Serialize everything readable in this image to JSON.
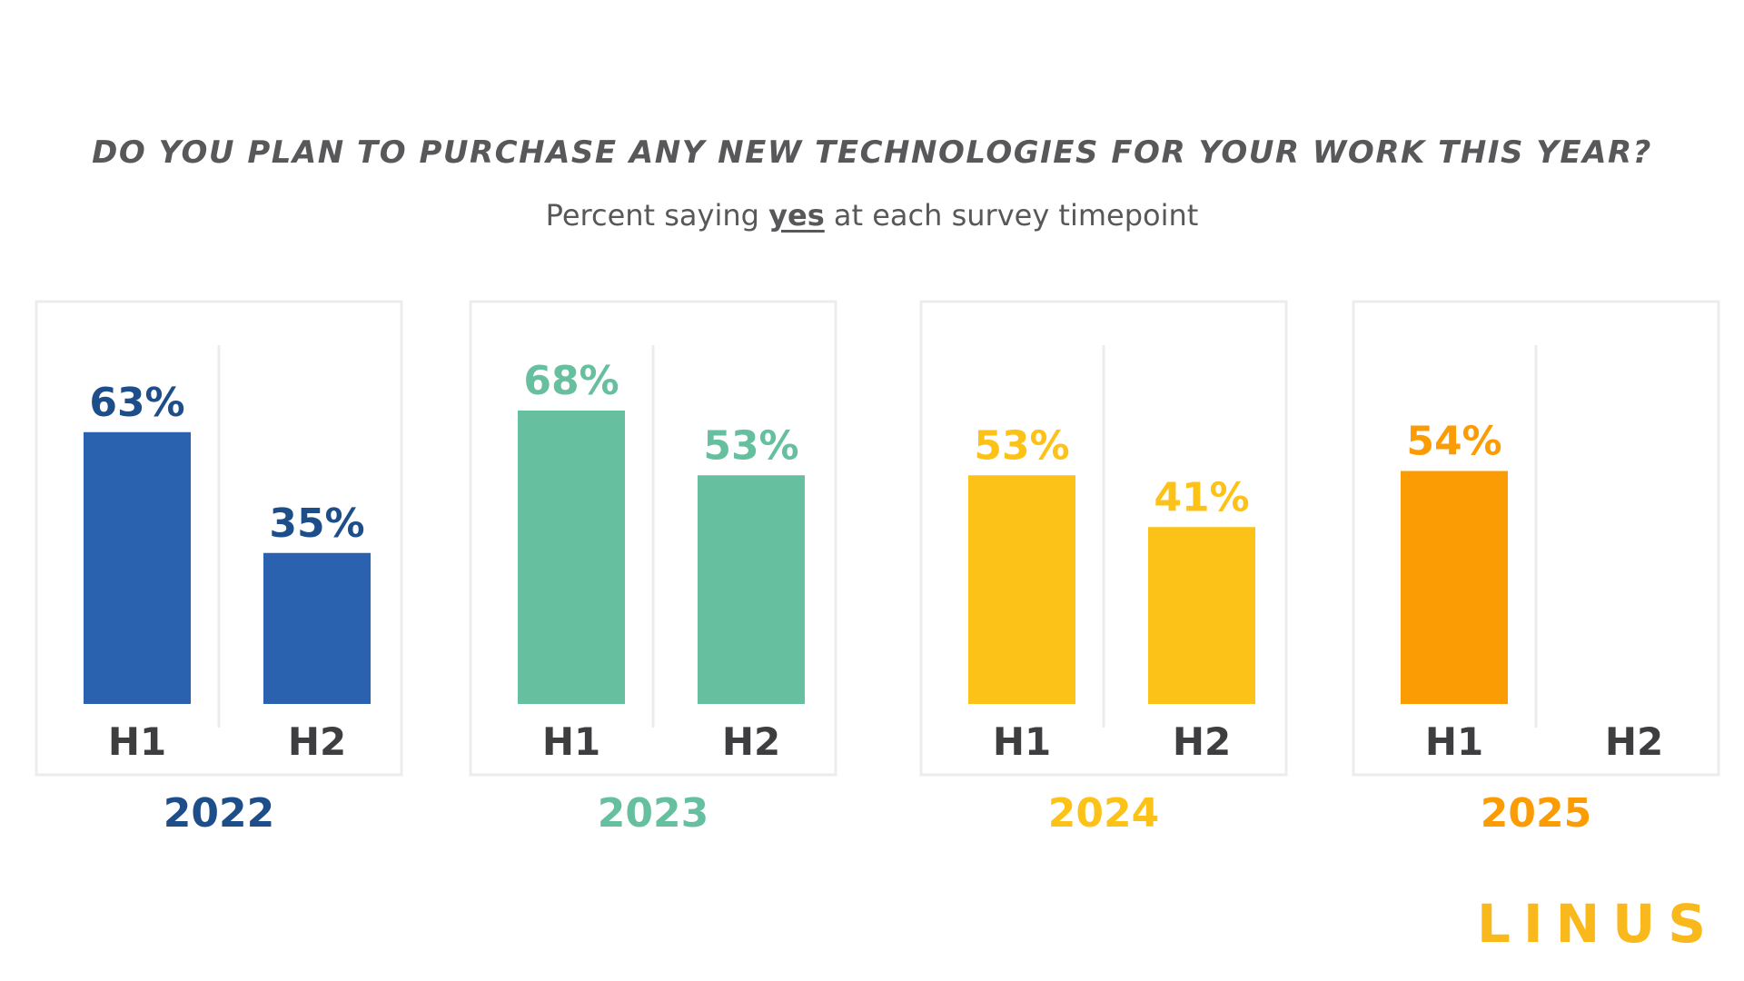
{
  "title": "DO YOU PLAN TO PURCHASE ANY NEW TECHNOLOGIES FOR YOUR WORK THIS YEAR?",
  "subtitle": {
    "before": "Percent saying ",
    "emphasis": "yes",
    "after": " at each survey timepoint"
  },
  "logo": "LINUS",
  "chart_data": {
    "type": "bar",
    "unit": "%",
    "ylim": [
      0,
      80
    ],
    "grid": false,
    "groups": [
      {
        "year": "2022",
        "color": "#2a62b0",
        "label_color": "#1d4e89",
        "bars": [
          {
            "period": "H1",
            "value": 63
          },
          {
            "period": "H2",
            "value": 35
          }
        ]
      },
      {
        "year": "2023",
        "color": "#66bf9f",
        "label_color": "#66bf9f",
        "bars": [
          {
            "period": "H1",
            "value": 68
          },
          {
            "period": "H2",
            "value": 53
          }
        ]
      },
      {
        "year": "2024",
        "color": "#fdc218",
        "label_color": "#fdc218",
        "bars": [
          {
            "period": "H1",
            "value": 53
          },
          {
            "period": "H2",
            "value": 41
          }
        ]
      },
      {
        "year": "2025",
        "color": "#fb9c04",
        "label_color": "#fb9c04",
        "bars": [
          {
            "period": "H1",
            "value": 54
          },
          {
            "period": "H2",
            "value": null
          }
        ]
      }
    ],
    "period_label_color": "#3e3e40",
    "panel_border_color": "#ececec"
  }
}
